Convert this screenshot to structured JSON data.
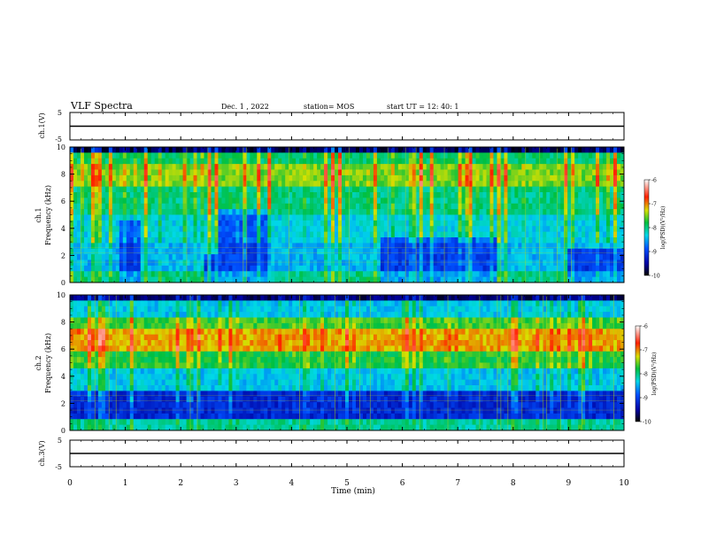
{
  "header": {
    "title": "VLF Spectra",
    "date": "Dec. 1 , 2022",
    "station": "station= MOS",
    "start": "start  UT =   12: 40: 1"
  },
  "chart_data": [
    {
      "type": "line",
      "ylabel": "ch.1(V)",
      "yticks": [
        "5",
        "-5"
      ],
      "ylim": [
        -5,
        5
      ],
      "level": 0
    },
    {
      "type": "heatmap",
      "ylabel_line1": "ch.1",
      "ylabel_line2": "Frequency (kHz)",
      "ylim": [
        0,
        10
      ],
      "yticks": [
        "0",
        "2",
        "4",
        "6",
        "8",
        "10"
      ],
      "colorbar": {
        "label": "log(PSD)(V²/Hz)",
        "ticks": [
          "-6",
          "-7",
          "-8",
          "-9",
          "-10"
        ],
        "range": [
          -10,
          -6
        ]
      }
    },
    {
      "type": "heatmap",
      "ylabel_line1": "ch.2",
      "ylabel_line2": "Frequency (kHz)",
      "ylim": [
        0,
        10
      ],
      "yticks": [
        "0",
        "2",
        "4",
        "6",
        "8",
        "10"
      ],
      "colorbar": {
        "label": "log(PSD)(V²/Hz)",
        "ticks": [
          "-6",
          "-7",
          "-8",
          "-9",
          "-10"
        ],
        "range": [
          -10,
          -6
        ]
      }
    },
    {
      "type": "line",
      "ylabel": "ch.3(V)",
      "yticks": [
        "5",
        "-5"
      ],
      "ylim": [
        -5,
        5
      ],
      "level": 0
    }
  ],
  "xaxis": {
    "label": "Time (min)",
    "xlim": [
      0,
      10
    ],
    "ticks": [
      "0",
      "1",
      "2",
      "3",
      "4",
      "5",
      "6",
      "7",
      "8",
      "9",
      "10"
    ]
  }
}
